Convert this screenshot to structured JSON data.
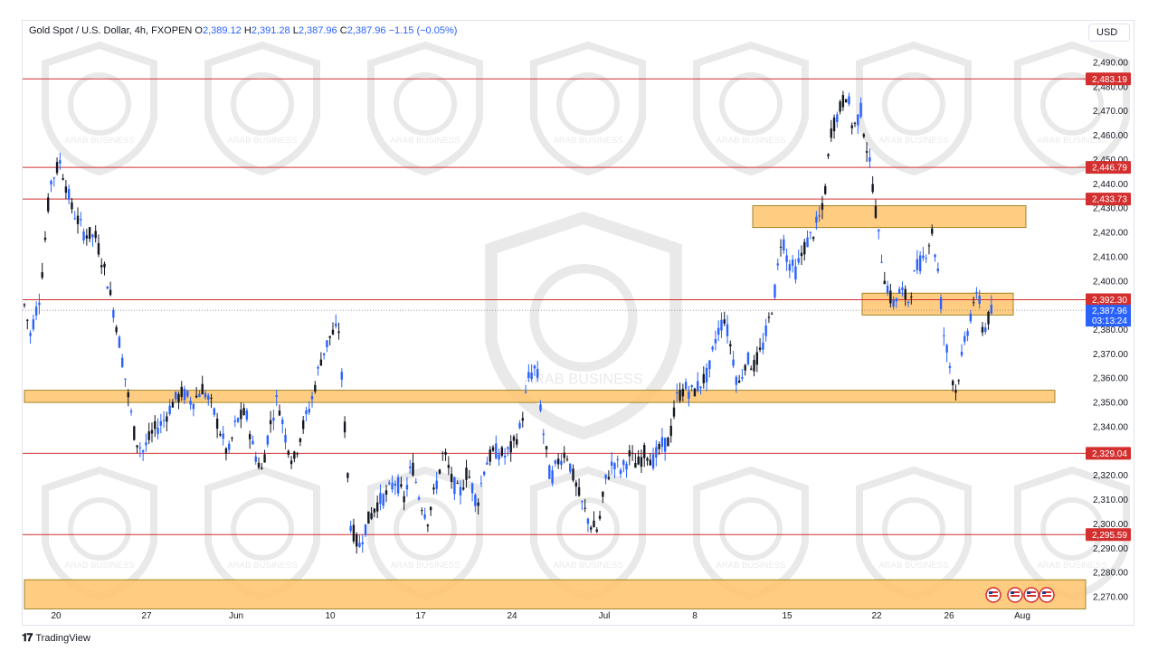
{
  "header": {
    "symbol": "Gold Spot / U.S. Dollar, 4h, FXOPEN",
    "o_label": "O",
    "o": "2,389.12",
    "h_label": "H",
    "h": "2,391.28",
    "l_label": "L",
    "l": "2,387.96",
    "c_label": "C",
    "c": "2,387.96",
    "change": "−1.15 (−0.05%)"
  },
  "currency": "USD",
  "footer": {
    "brand": "TradingView"
  },
  "watermark": "ARAB BUSINESS",
  "colors": {
    "up": "#131722",
    "down": "#2962ff",
    "level_line": "#d32f2f",
    "zone_fill": "#ffc46b",
    "zone_border": "#8a6d00",
    "price_tag": "#2962ff"
  },
  "chart_data": {
    "type": "candlestick",
    "ylim": [
      2265,
      2497
    ],
    "y_ticks": [
      2270,
      2280,
      2290,
      2300,
      2310,
      2320,
      2330,
      2340,
      2350,
      2360,
      2370,
      2380,
      2390,
      2400,
      2410,
      2420,
      2430,
      2440,
      2450,
      2460,
      2470,
      2480,
      2490
    ],
    "y_tick_labels": [
      "2,270.00",
      "2,280.00",
      "2,290.00",
      "2,300.00",
      "2,310.00",
      "2,320.00",
      "2,330.00",
      "2,340.00",
      "2,350.00",
      "2,360.00",
      "2,370.00",
      "2,380.00",
      "2,390.00",
      "2,400.00",
      "2,410.00",
      "2,420.00",
      "2,430.00",
      "2,440.00",
      "2,450.00",
      "2,460.00",
      "2,470.00",
      "2,480.00",
      "2,490.00"
    ],
    "x_ticks": [
      "20",
      "27",
      "Jun",
      "10",
      "17",
      "24",
      "Jul",
      "8",
      "15",
      "22",
      "26",
      "Aug"
    ],
    "levels": [
      {
        "value": 2483.19,
        "label": "2,483.19"
      },
      {
        "value": 2446.79,
        "label": "2,446.79"
      },
      {
        "value": 2433.73,
        "label": "2,433.73"
      },
      {
        "value": 2392.3,
        "label": "2,392.30"
      },
      {
        "value": 2329.04,
        "label": "2,329.04"
      },
      {
        "value": 2295.59,
        "label": "2,295.59"
      }
    ],
    "current_price": {
      "value": 2387.96,
      "label": "2,387.96",
      "countdown": "03:13:24"
    },
    "zones": [
      {
        "from": 2422,
        "to": 2431,
        "x_start": "Jul 11",
        "x_end": "Jul 26"
      },
      {
        "from": 2386,
        "to": 2395,
        "x_start": "Jul 18",
        "x_end": "Jul 26"
      },
      {
        "from": 2350,
        "to": 2355,
        "x_start": "May 16",
        "x_end": "Jul 29"
      },
      {
        "from": 2265,
        "to": 2277,
        "x_start": "May 16",
        "x_end": "Aug 1"
      }
    ],
    "path": [
      [
        2390,
        0
      ],
      [
        2378,
        6
      ],
      [
        2395,
        16
      ],
      [
        2440,
        26
      ],
      [
        2449,
        36
      ],
      [
        2430,
        48
      ],
      [
        2420,
        60
      ],
      [
        2418,
        72
      ],
      [
        2400,
        84
      ],
      [
        2380,
        94
      ],
      [
        2355,
        104
      ],
      [
        2335,
        112
      ],
      [
        2330,
        120
      ],
      [
        2338,
        130
      ],
      [
        2342,
        140
      ],
      [
        2350,
        150
      ],
      [
        2354,
        160
      ],
      [
        2350,
        170
      ],
      [
        2356,
        180
      ],
      [
        2348,
        190
      ],
      [
        2338,
        198
      ],
      [
        2328,
        206
      ],
      [
        2342,
        214
      ],
      [
        2346,
        224
      ],
      [
        2330,
        232
      ],
      [
        2322,
        240
      ],
      [
        2340,
        248
      ],
      [
        2352,
        256
      ],
      [
        2336,
        264
      ],
      [
        2325,
        272
      ],
      [
        2338,
        280
      ],
      [
        2350,
        290
      ],
      [
        2368,
        300
      ],
      [
        2378,
        310
      ],
      [
        2380,
        318
      ],
      [
        2340,
        324
      ],
      [
        2300,
        330
      ],
      [
        2290,
        338
      ],
      [
        2300,
        346
      ],
      [
        2308,
        356
      ],
      [
        2312,
        366
      ],
      [
        2318,
        376
      ],
      [
        2310,
        384
      ],
      [
        2325,
        392
      ],
      [
        2310,
        400
      ],
      [
        2302,
        408
      ],
      [
        2315,
        416
      ],
      [
        2330,
        424
      ],
      [
        2318,
        432
      ],
      [
        2312,
        440
      ],
      [
        2322,
        448
      ],
      [
        2308,
        458
      ],
      [
        2325,
        466
      ],
      [
        2330,
        476
      ],
      [
        2328,
        486
      ],
      [
        2332,
        494
      ],
      [
        2340,
        502
      ],
      [
        2360,
        510
      ],
      [
        2365,
        518
      ],
      [
        2340,
        524
      ],
      [
        2318,
        532
      ],
      [
        2326,
        540
      ],
      [
        2330,
        548
      ],
      [
        2318,
        556
      ],
      [
        2308,
        564
      ],
      [
        2300,
        572
      ],
      [
        2297,
        580
      ],
      [
        2318,
        588
      ],
      [
        2326,
        596
      ],
      [
        2322,
        604
      ],
      [
        2328,
        612
      ],
      [
        2324,
        620
      ],
      [
        2330,
        628
      ],
      [
        2326,
        636
      ],
      [
        2332,
        644
      ],
      [
        2334,
        652
      ],
      [
        2352,
        660
      ],
      [
        2356,
        668
      ],
      [
        2354,
        676
      ],
      [
        2358,
        684
      ],
      [
        2362,
        692
      ],
      [
        2378,
        700
      ],
      [
        2385,
        708
      ],
      [
        2370,
        716
      ],
      [
        2356,
        722
      ],
      [
        2368,
        730
      ],
      [
        2365,
        738
      ],
      [
        2372,
        746
      ],
      [
        2385,
        754
      ],
      [
        2398,
        760
      ],
      [
        2420,
        766
      ],
      [
        2408,
        772
      ],
      [
        2404,
        780
      ],
      [
        2415,
        790
      ],
      [
        2420,
        798
      ],
      [
        2430,
        808
      ],
      [
        2462,
        816
      ],
      [
        2470,
        824
      ],
      [
        2478,
        832
      ],
      [
        2462,
        838
      ],
      [
        2470,
        846
      ],
      [
        2455,
        852
      ],
      [
        2440,
        858
      ],
      [
        2418,
        864
      ],
      [
        2402,
        870
      ],
      [
        2390,
        878
      ],
      [
        2396,
        886
      ],
      [
        2392,
        894
      ],
      [
        2405,
        902
      ],
      [
        2410,
        910
      ],
      [
        2420,
        918
      ],
      [
        2404,
        924
      ],
      [
        2378,
        930
      ],
      [
        2365,
        936
      ],
      [
        2355,
        942
      ],
      [
        2368,
        948
      ],
      [
        2380,
        954
      ],
      [
        2392,
        960
      ],
      [
        2392,
        966
      ],
      [
        2378,
        970
      ],
      [
        2386,
        976
      ],
      [
        2388,
        980
      ]
    ]
  }
}
